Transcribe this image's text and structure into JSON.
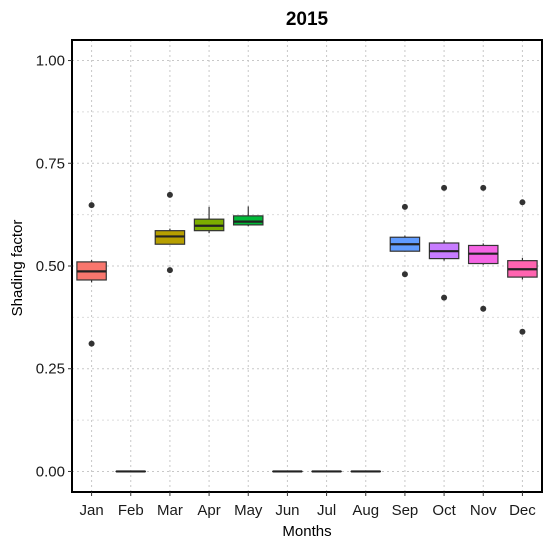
{
  "chart_data": {
    "type": "boxplot",
    "title": "2015",
    "xlabel": "Months",
    "ylabel": "Shading factor",
    "ylim": [
      -0.05,
      1.05
    ],
    "yticks": [
      0.0,
      0.25,
      0.5,
      0.75,
      1.0
    ],
    "ytick_labels": [
      "0.00",
      "0.25",
      "0.50",
      "0.75",
      "1.00"
    ],
    "grid": true,
    "legend": "none",
    "categories": [
      "Jan",
      "Feb",
      "Mar",
      "Apr",
      "May",
      "Jun",
      "Jul",
      "Aug",
      "Sep",
      "Oct",
      "Nov",
      "Dec"
    ],
    "boxes": [
      {
        "month": "Jan",
        "color": "#F8766D",
        "whisker_low": 0.46,
        "q1": 0.466,
        "median": 0.487,
        "q3": 0.51,
        "whisker_high": 0.515,
        "outliers": [
          0.648,
          0.311
        ]
      },
      {
        "month": "Feb",
        "color": "#DE8C00",
        "whisker_low": 0.0,
        "q1": 0.0,
        "median": 0.0,
        "q3": 0.0,
        "whisker_high": 0.0,
        "outliers": []
      },
      {
        "month": "Mar",
        "color": "#B79F00",
        "whisker_low": 0.553,
        "q1": 0.553,
        "median": 0.572,
        "q3": 0.586,
        "whisker_high": 0.591,
        "outliers": [
          0.673,
          0.49
        ]
      },
      {
        "month": "Apr",
        "color": "#7CAE00",
        "whisker_low": 0.58,
        "q1": 0.586,
        "median": 0.598,
        "q3": 0.614,
        "whisker_high": 0.644,
        "outliers": []
      },
      {
        "month": "May",
        "color": "#00BA38",
        "whisker_low": 0.597,
        "q1": 0.6,
        "median": 0.608,
        "q3": 0.622,
        "whisker_high": 0.645,
        "outliers": []
      },
      {
        "month": "Jun",
        "color": "#00C08B",
        "whisker_low": 0.0,
        "q1": 0.0,
        "median": 0.0,
        "q3": 0.0,
        "whisker_high": 0.0,
        "outliers": []
      },
      {
        "month": "Jul",
        "color": "#00BFC4",
        "whisker_low": 0.0,
        "q1": 0.0,
        "median": 0.0,
        "q3": 0.0,
        "whisker_high": 0.0,
        "outliers": []
      },
      {
        "month": "Aug",
        "color": "#00B4F0",
        "whisker_low": 0.0,
        "q1": 0.0,
        "median": 0.0,
        "q3": 0.0,
        "whisker_high": 0.0,
        "outliers": []
      },
      {
        "month": "Sep",
        "color": "#619CFF",
        "whisker_low": 0.535,
        "q1": 0.536,
        "median": 0.553,
        "q3": 0.57,
        "whisker_high": 0.574,
        "outliers": [
          0.644,
          0.48
        ]
      },
      {
        "month": "Oct",
        "color": "#C77CFF",
        "whisker_low": 0.513,
        "q1": 0.518,
        "median": 0.536,
        "q3": 0.556,
        "whisker_high": 0.562,
        "outliers": [
          0.69,
          0.423
        ]
      },
      {
        "month": "Nov",
        "color": "#F564E3",
        "whisker_low": 0.503,
        "q1": 0.506,
        "median": 0.53,
        "q3": 0.55,
        "whisker_high": 0.555,
        "outliers": [
          0.69,
          0.396
        ]
      },
      {
        "month": "Dec",
        "color": "#FF64B0",
        "whisker_low": 0.467,
        "q1": 0.473,
        "median": 0.492,
        "q3": 0.513,
        "whisker_high": 0.52,
        "outliers": [
          0.655,
          0.34
        ]
      }
    ]
  }
}
